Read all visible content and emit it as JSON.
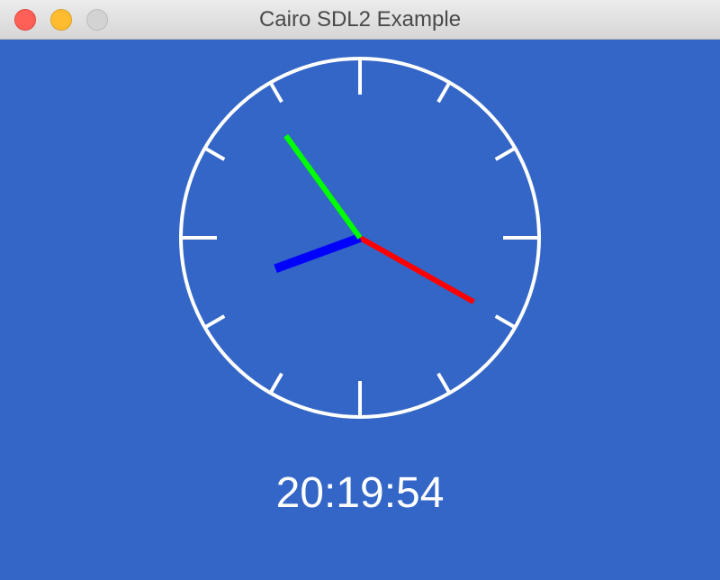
{
  "window": {
    "title": "Cairo SDL2 Example"
  },
  "colors": {
    "background": "#3366c6",
    "clock_face": "#ffffff",
    "hour_hand": "#0000ff",
    "minute_hand": "#ff0000",
    "second_hand": "#00ff00"
  },
  "clock": {
    "time": "20:19:54",
    "hours": 20,
    "minutes": 19,
    "seconds": 54
  }
}
